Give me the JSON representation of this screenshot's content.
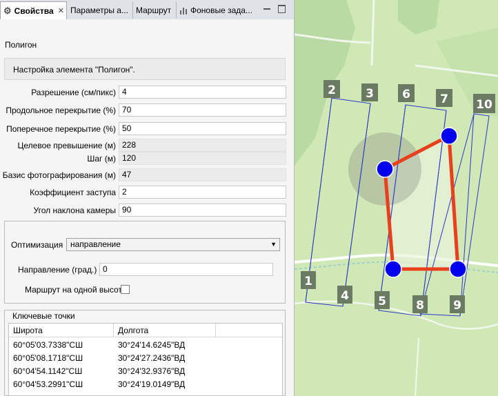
{
  "tabs": [
    {
      "label": "Свойства",
      "active": true,
      "close": "✕"
    },
    {
      "label": "Параметры а..."
    },
    {
      "label": "Маршрут"
    },
    {
      "label": "Фоновые зада..."
    }
  ],
  "section_title": "Полигон",
  "description": "Настройка элемента \"Полигон\".",
  "fields": [
    {
      "label": "Разрешение (см/пикс)",
      "value": "4",
      "readonly": false
    },
    {
      "label": "Продольное перекрытие (%)",
      "value": "70",
      "readonly": false
    },
    {
      "label": "Поперечное перекрытие (%)",
      "value": "50",
      "readonly": false
    },
    {
      "label": "Целевое превышение (м)",
      "value": "228",
      "readonly": true
    },
    {
      "label": "Шаг (м)",
      "value": "120",
      "readonly": true
    },
    {
      "label": "Базис фотографирования (м)",
      "value": "47",
      "readonly": true
    },
    {
      "label": "Коэффициент заступа",
      "value": "2",
      "readonly": false
    },
    {
      "label": "Угол наклона камеры",
      "value": "90",
      "readonly": false
    }
  ],
  "optimization": {
    "label": "Оптимизация",
    "value": "направление"
  },
  "direction": {
    "label": "Направление (град.)",
    "value": "0"
  },
  "same_height": {
    "label": "Маршрут на одной высоте",
    "checked": false
  },
  "keypoints": {
    "title": "Ключевые точки",
    "columns": [
      "Широта",
      "Долгота"
    ],
    "rows": [
      [
        "60°05'03.7338\"СШ",
        "30°24'14.6245\"ВД"
      ],
      [
        "60°05'08.1718\"СШ",
        "30°24'27.2436\"ВД"
      ],
      [
        "60°04'54.1142\"СШ",
        "30°24'32.9376\"ВД"
      ],
      [
        "60°04'53.2991\"СШ",
        "30°24'19.0149\"ВД"
      ]
    ]
  },
  "map": {
    "strip_labels": [
      "1",
      "2",
      "3",
      "4",
      "5",
      "6",
      "7",
      "8",
      "9",
      "10"
    ],
    "colors": {
      "route": "#e8401c",
      "vertex": "#0000ee",
      "strip": "#2b36c8",
      "label_bg": "#6b7a63"
    }
  }
}
